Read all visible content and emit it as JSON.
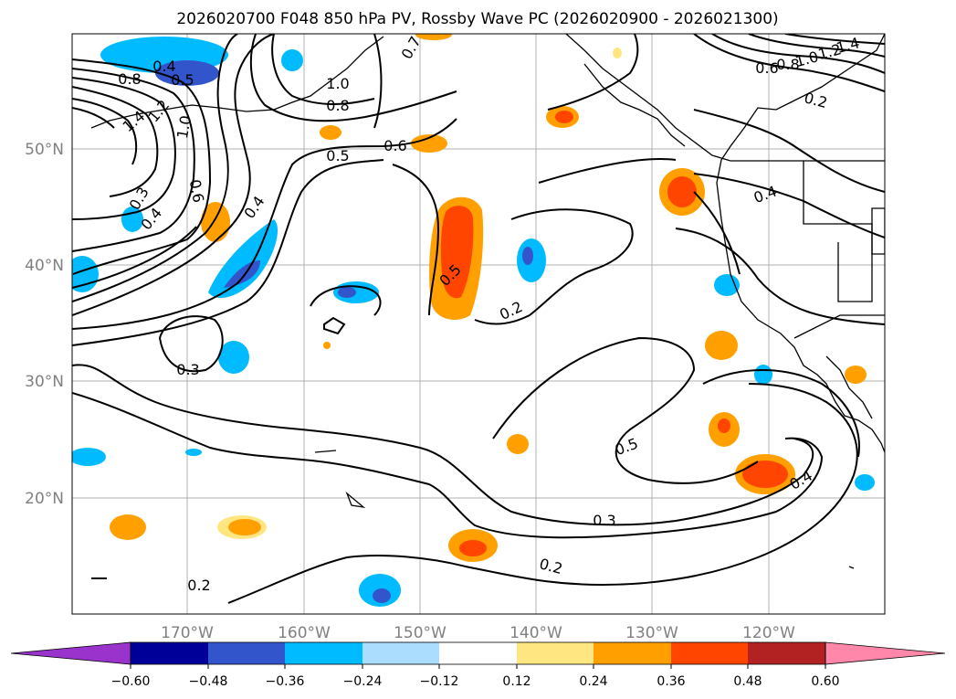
{
  "title": "2026020700 F048 850 hPa PV, Rossby Wave PC (2026020900 - 2026021300)",
  "map": {
    "lon_ticks": [
      "170°W",
      "160°W",
      "150°W",
      "140°W",
      "130°W",
      "120°W"
    ],
    "lat_ticks": [
      "50°N",
      "40°N",
      "30°N",
      "20°N"
    ],
    "contour_labels": [
      "0.4",
      "0.5",
      "0.8",
      "1.4",
      "1.2",
      "1.0",
      "0.3",
      "0.4",
      "0.6",
      "0.4",
      "0.7",
      "1.0",
      "0.8",
      "0.5",
      "0.6",
      "0.5",
      "0.2",
      "0.3",
      "0.5",
      "0.3",
      "0.2",
      "0.2",
      "1.4",
      "1.2",
      "1.0",
      "0.8",
      "0.6",
      "0.2",
      "0.4",
      "0.4",
      "0.2"
    ]
  },
  "colorbar": {
    "tick_labels": [
      "−0.60",
      "−0.48",
      "−0.36",
      "−0.24",
      "−0.12",
      "0.12",
      "0.24",
      "0.36",
      "0.48",
      "0.60"
    ],
    "colors": [
      "#9933cc",
      "#000099",
      "#3355cc",
      "#00bbff",
      "#aaddff",
      "#ffffff",
      "#ffe680",
      "#ffa000",
      "#ff4500",
      "#b22222",
      "#ff88aa"
    ]
  }
}
